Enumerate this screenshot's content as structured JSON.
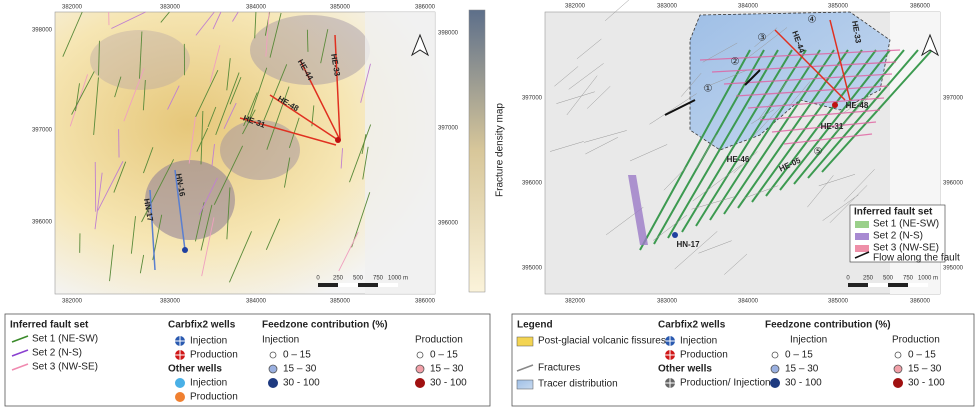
{
  "left_map": {
    "x_ticks_top": [
      "382000",
      "383000",
      "384000",
      "385000",
      "386000"
    ],
    "x_ticks_bottom": [
      "382000",
      "383000",
      "384000",
      "385000",
      "386000"
    ],
    "y_ticks_left": [
      "398000",
      "397000",
      "396000"
    ],
    "y_ticks_right": [
      "398000",
      "397000",
      "396000"
    ],
    "wells": [
      "HE-33",
      "HE-44",
      "HE-48",
      "HE-31",
      "HN-17",
      "HN-16"
    ],
    "colorbar_label": "Fracture density map",
    "scale": [
      "0",
      "250",
      "500",
      "750",
      "1000 m"
    ]
  },
  "right_map": {
    "x_ticks_top": [
      "382000",
      "383000",
      "384000",
      "385000",
      "386000"
    ],
    "x_ticks_bottom": [
      "382000",
      "383000",
      "384000",
      "385000",
      "386000"
    ],
    "y_ticks_left": [
      "397000",
      "396000",
      "395000"
    ],
    "y_ticks_right": [
      "397000",
      "396000",
      "395000"
    ],
    "wells": [
      "HE-48",
      "HE-31",
      "HE-46",
      "HE-05",
      "HN-17",
      "HE-44",
      "HE-33"
    ],
    "zones": [
      "①",
      "②",
      "③",
      "④",
      "⑤"
    ],
    "scale": [
      "0",
      "250",
      "500",
      "750",
      "1000 m"
    ],
    "inset_legend": {
      "title": "Inferred fault set",
      "items": [
        "Set 1 (NE-SW)",
        "Set 2 (N-S)",
        "Set 3 (NW-SE)",
        "Flow along the fault"
      ]
    }
  },
  "left_legend": {
    "fault_title": "Inferred fault set",
    "faults": [
      "Set 1 (NE-SW)",
      "Set 2 (N-S)",
      "Set 3 (NW-SE)"
    ],
    "carbfix_title": "Carbfix2 wells",
    "carbfix": [
      "Injection",
      "Production"
    ],
    "other_title": "Other wells",
    "other": [
      "Injection",
      "Production"
    ],
    "feed_title": "Feedzone contribution (%)",
    "injection_title": "Injection",
    "injection": [
      "0 – 15",
      "15 – 30",
      "30 - 100"
    ],
    "production_title": "Production",
    "production": [
      "0 – 15",
      "15 – 30",
      "30 - 100"
    ]
  },
  "right_legend": {
    "title": "Legend",
    "items": [
      "Post-glacial volcanic fissures",
      "Fractures",
      "Tracer distribution"
    ],
    "carbfix_title": "Carbfix2 wells",
    "carbfix": [
      "Injection",
      "Production"
    ],
    "other_title": "Other wells",
    "other": [
      "Production/ Injection"
    ],
    "feed_title": "Feedzone contribution (%)",
    "injection_title": "Injection",
    "injection": [
      "0 – 15",
      "15 – 30",
      "30 - 100"
    ],
    "production_title": "Production",
    "production": [
      "0 – 15",
      "15 – 30",
      "30 - 100"
    ]
  }
}
